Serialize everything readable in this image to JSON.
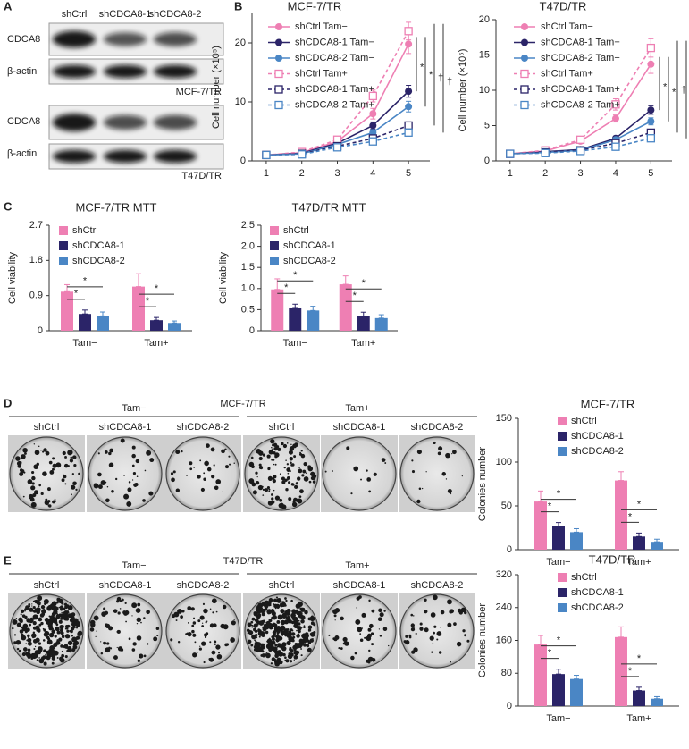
{
  "panel_labels": [
    "A",
    "B",
    "C",
    "D",
    "E"
  ],
  "blots": {
    "lanes": [
      "shCtrl",
      "shCDCA8-1",
      "shCDCA8-2"
    ],
    "groups": [
      {
        "name": "MCF-7/TR",
        "rows": [
          "CDCA8",
          "β-actin"
        ]
      },
      {
        "name": "T47D/TR",
        "rows": [
          "CDCA8",
          "β-actin"
        ]
      }
    ]
  },
  "colonies": [
    {
      "name": "MCF-7/TR",
      "conditions": [
        "Tam−",
        "Tam+"
      ],
      "lanes": [
        "shCtrl",
        "shCDCA8-1",
        "shCDCA8-2",
        "shCtrl",
        "shCDCA8-1",
        "shCDCA8-2"
      ]
    },
    {
      "name": "T47D/TR",
      "conditions": [
        "Tam−",
        "Tam+"
      ],
      "lanes": [
        "shCtrl",
        "shCDCA8-1",
        "shCDCA8-2",
        "shCtrl",
        "shCDCA8-1",
        "shCDCA8-2"
      ]
    }
  ],
  "chart_data": [
    {
      "type": "line",
      "title": "MCF-7/TR",
      "ylabel": "Cell number (×10⁵)",
      "x": [
        1,
        2,
        3,
        4,
        5
      ],
      "xlim": [
        0.6,
        5.6
      ],
      "xticks": [
        1,
        2,
        3,
        4,
        5
      ],
      "ylim": [
        0,
        25
      ],
      "yticks": [
        0,
        10,
        20
      ],
      "legend": "upper left",
      "series": [
        {
          "name": "shCtrl Tam−",
          "color": "#ee7fb3",
          "dashed": false,
          "marker": "circle",
          "values": [
            1,
            1.4,
            3.3,
            8,
            19.8
          ],
          "errors": [
            0.1,
            0.2,
            0.4,
            0.9,
            1.6
          ]
        },
        {
          "name": "shCDCA8-1 Tam−",
          "color": "#2b2468",
          "dashed": false,
          "marker": "circle",
          "values": [
            1,
            1.3,
            3,
            6,
            11.8
          ],
          "errors": [
            0.1,
            0.2,
            0.3,
            0.6,
            1.0
          ]
        },
        {
          "name": "shCDCA8-2 Tam−",
          "color": "#4a86c5",
          "dashed": false,
          "marker": "circle",
          "values": [
            1,
            1.2,
            2.8,
            4.8,
            9.2
          ],
          "errors": [
            0.1,
            0.2,
            0.3,
            0.5,
            0.9
          ]
        },
        {
          "name": "shCtrl Tam+",
          "color": "#ee7fb3",
          "dashed": true,
          "marker": "square",
          "values": [
            1,
            1.5,
            3.6,
            11,
            22
          ],
          "errors": [
            0.1,
            0.2,
            0.4,
            1.0,
            1.5
          ]
        },
        {
          "name": "shCDCA8-1 Tam+",
          "color": "#2b2468",
          "dashed": true,
          "marker": "square",
          "values": [
            1,
            1.2,
            2.5,
            3.8,
            6
          ],
          "errors": [
            0.1,
            0.1,
            0.3,
            0.4,
            0.6
          ]
        },
        {
          "name": "shCDCA8-2 Tam+",
          "color": "#4a86c5",
          "dashed": true,
          "marker": "square",
          "values": [
            1,
            1.1,
            2.3,
            3.3,
            4.8
          ],
          "errors": [
            0.1,
            0.1,
            0.2,
            0.3,
            0.5
          ]
        }
      ],
      "annotations": [
        "*",
        "*",
        "†",
        "†"
      ]
    },
    {
      "type": "line",
      "title": "T47D/TR",
      "ylabel": "Cell number (×10⁵)",
      "x": [
        1,
        2,
        3,
        4,
        5
      ],
      "xlim": [
        0.6,
        5.6
      ],
      "xticks": [
        1,
        2,
        3,
        4,
        5
      ],
      "ylim": [
        0,
        20
      ],
      "yticks": [
        0,
        5,
        10,
        15,
        20
      ],
      "legend": "upper left",
      "series": [
        {
          "name": "shCtrl Tam−",
          "color": "#ee7fb3",
          "dashed": false,
          "marker": "circle",
          "values": [
            1,
            1.4,
            2.8,
            6,
            13.7
          ],
          "errors": [
            0.1,
            0.2,
            0.3,
            0.5,
            1.3
          ]
        },
        {
          "name": "shCDCA8-1 Tam−",
          "color": "#2b2468",
          "dashed": false,
          "marker": "circle",
          "values": [
            1,
            1.3,
            1.6,
            3.2,
            7.2
          ],
          "errors": [
            0.1,
            0.1,
            0.2,
            0.3,
            0.6
          ]
        },
        {
          "name": "shCDCA8-2 Tam−",
          "color": "#4a86c5",
          "dashed": false,
          "marker": "circle",
          "values": [
            1,
            1.2,
            1.5,
            3,
            5.6
          ],
          "errors": [
            0.1,
            0.1,
            0.2,
            0.3,
            0.5
          ]
        },
        {
          "name": "shCtrl Tam+",
          "color": "#ee7fb3",
          "dashed": true,
          "marker": "square",
          "values": [
            1,
            1.5,
            3,
            8,
            16
          ],
          "errors": [
            0.1,
            0.2,
            0.3,
            0.8,
            1.3
          ]
        },
        {
          "name": "shCDCA8-1 Tam+",
          "color": "#2b2468",
          "dashed": true,
          "marker": "square",
          "values": [
            1,
            1.2,
            1.5,
            2.5,
            4
          ],
          "errors": [
            0.1,
            0.1,
            0.2,
            0.3,
            0.4
          ]
        },
        {
          "name": "shCDCA8-2 Tam+",
          "color": "#4a86c5",
          "dashed": true,
          "marker": "square",
          "values": [
            1,
            1.1,
            1.4,
            2,
            3.2
          ],
          "errors": [
            0.1,
            0.1,
            0.1,
            0.2,
            0.3
          ]
        }
      ],
      "annotations": [
        "*",
        "*",
        "†",
        "†"
      ]
    },
    {
      "type": "bar",
      "title": "MCF-7/TR MTT",
      "ylabel": "Cell viability",
      "categories": [
        "Tam−",
        "Tam+"
      ],
      "ylim": [
        0,
        2.7
      ],
      "yticks": [
        0,
        0.9,
        1.8,
        2.7
      ],
      "legend": "upper left",
      "series": [
        {
          "name": "shCtrl",
          "color": "#ee7fb3",
          "values": [
            1.0,
            1.13
          ],
          "errors": [
            0.18,
            0.33
          ]
        },
        {
          "name": "shCDCA8-1",
          "color": "#2b2468",
          "values": [
            0.43,
            0.27
          ],
          "errors": [
            0.1,
            0.07
          ]
        },
        {
          "name": "shCDCA8-2",
          "color": "#4a86c5",
          "values": [
            0.38,
            0.2
          ],
          "errors": [
            0.1,
            0.05
          ]
        }
      ],
      "annotations": [
        "*",
        "*",
        "*",
        "*"
      ]
    },
    {
      "type": "bar",
      "title": "T47D/TR MTT",
      "ylabel": "Cell viability",
      "categories": [
        "Tam−",
        "Tam+"
      ],
      "ylim": [
        0,
        2.5
      ],
      "yticks": [
        0,
        0.5,
        {
          "value": 1,
          "label": "1.0"
        },
        1.5,
        {
          "value": 2,
          "label": "2.0"
        },
        2.5
      ],
      "legend": "upper left",
      "series": [
        {
          "name": "shCtrl",
          "color": "#ee7fb3",
          "values": [
            0.98,
            1.1
          ],
          "errors": [
            0.25,
            0.2
          ]
        },
        {
          "name": "shCDCA8-1",
          "color": "#2b2468",
          "values": [
            0.53,
            0.35
          ],
          "errors": [
            0.1,
            0.09
          ]
        },
        {
          "name": "shCDCA8-2",
          "color": "#4a86c5",
          "values": [
            0.48,
            0.3
          ],
          "errors": [
            0.1,
            0.08
          ]
        }
      ],
      "annotations": [
        "*",
        "*",
        "*",
        "*"
      ]
    },
    {
      "type": "bar",
      "title": "MCF-7/TR",
      "ylabel": "Colonies number",
      "categories": [
        "Tam−",
        "Tam+"
      ],
      "ylim": [
        0,
        150
      ],
      "yticks": [
        0,
        50,
        100,
        150
      ],
      "legend": "upper left",
      "series": [
        {
          "name": "shCtrl",
          "color": "#ee7fb3",
          "values": [
            55,
            79
          ],
          "errors": [
            12,
            10
          ]
        },
        {
          "name": "shCDCA8-1",
          "color": "#2b2468",
          "values": [
            27,
            15
          ],
          "errors": [
            4,
            4
          ]
        },
        {
          "name": "shCDCA8-2",
          "color": "#4a86c5",
          "values": [
            20,
            9
          ],
          "errors": [
            4,
            3
          ]
        }
      ],
      "annotations": [
        "*",
        "*",
        "*",
        "*"
      ]
    },
    {
      "type": "bar",
      "title": "T47D/TR",
      "ylabel": "Colonies number",
      "categories": [
        "Tam−",
        "Tam+"
      ],
      "ylim": [
        0,
        320
      ],
      "yticks": [
        0,
        80,
        160,
        240,
        320
      ],
      "legend": "upper left",
      "series": [
        {
          "name": "shCtrl",
          "color": "#ee7fb3",
          "values": [
            150,
            168
          ],
          "errors": [
            22,
            25
          ]
        },
        {
          "name": "shCDCA8-1",
          "color": "#2b2468",
          "values": [
            78,
            38
          ],
          "errors": [
            12,
            8
          ]
        },
        {
          "name": "shCDCA8-2",
          "color": "#4a86c5",
          "values": [
            66,
            18
          ],
          "errors": [
            9,
            5
          ]
        }
      ],
      "annotations": [
        "*",
        "*",
        "*",
        "*"
      ]
    }
  ]
}
